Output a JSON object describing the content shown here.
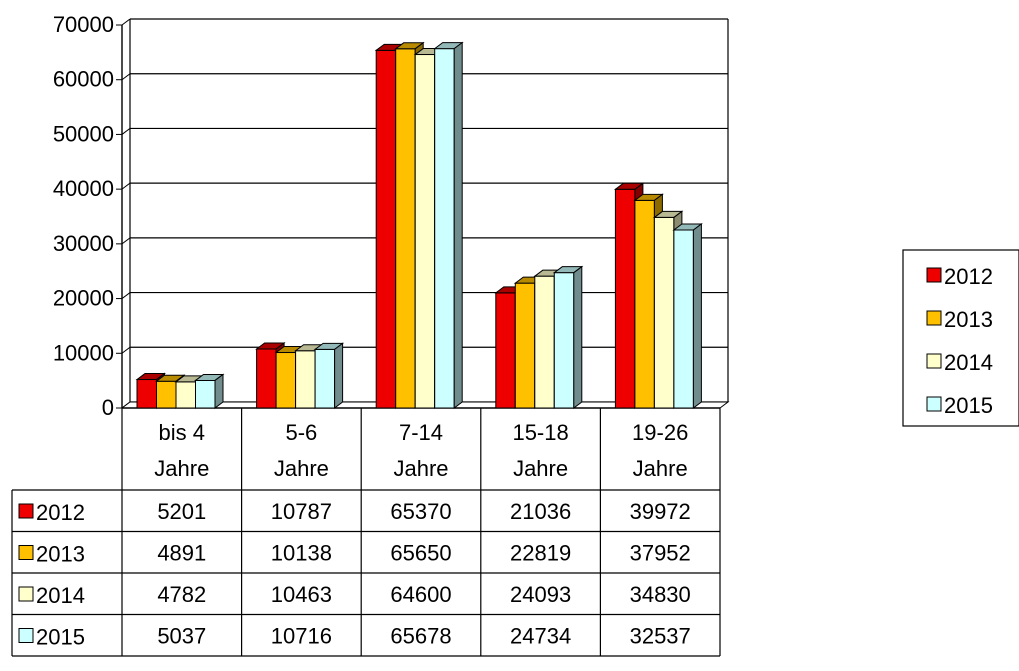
{
  "chart_data": {
    "type": "bar",
    "title": "",
    "xlabel": "",
    "ylabel": "",
    "ylim": [
      0,
      70000
    ],
    "yticks": [
      "0",
      "10000",
      "20000",
      "30000",
      "40000",
      "50000",
      "60000",
      "70000"
    ],
    "grid": true,
    "legend_position": "right",
    "categories": [
      [
        "bis 4",
        "Jahre"
      ],
      [
        "5-6",
        "Jahre"
      ],
      [
        "7-14",
        "Jahre"
      ],
      [
        "15-18",
        "Jahre"
      ],
      [
        "19-26",
        "Jahre"
      ]
    ],
    "series": [
      {
        "name": "2012",
        "color": "#ee0000",
        "values": [
          5201,
          10787,
          65370,
          21036,
          39972
        ]
      },
      {
        "name": "2013",
        "color": "#ffc000",
        "values": [
          4891,
          10138,
          65650,
          22819,
          37952
        ]
      },
      {
        "name": "2014",
        "color": "#ffffcc",
        "values": [
          4782,
          10463,
          64600,
          24093,
          34830
        ]
      },
      {
        "name": "2015",
        "color": "#ccffff",
        "values": [
          5037,
          10716,
          65678,
          24734,
          32537
        ]
      }
    ],
    "data_table": true
  }
}
